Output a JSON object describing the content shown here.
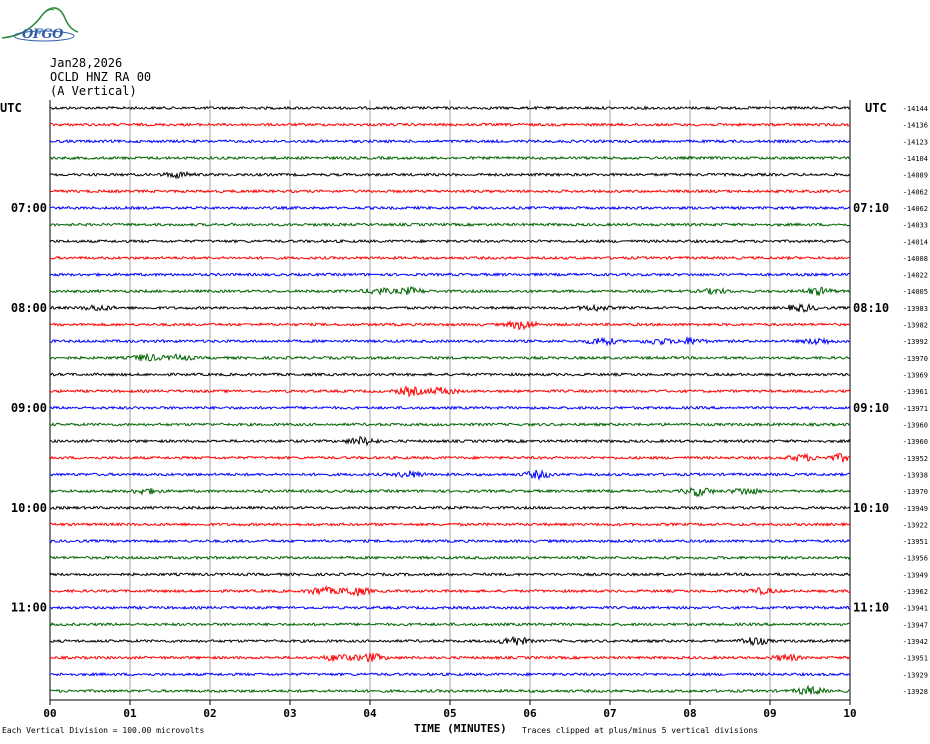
{
  "logo": {
    "text": "OFGO",
    "color": "#2f5fa8",
    "mountain_color": "#2e8b3d"
  },
  "header": {
    "date": "Jan28,2026",
    "station": "OCLD HNZ RA 00",
    "component": "(A Vertical)"
  },
  "chart_data": {
    "type": "line",
    "title": "",
    "xlabel": "TIME (MINUTES)",
    "ylabel": "",
    "xlim": [
      0,
      10
    ],
    "x_ticks": [
      "00",
      "01",
      "02",
      "03",
      "04",
      "05",
      "06",
      "07",
      "08",
      "09",
      "10"
    ],
    "left_axis_label": "UTC",
    "right_axis_label": "UTC",
    "left_time_labels": [
      {
        "row": 6,
        "label": "07:00"
      },
      {
        "row": 12,
        "label": "08:00"
      },
      {
        "row": 18,
        "label": "09:00"
      },
      {
        "row": 24,
        "label": "10:00"
      },
      {
        "row": 30,
        "label": "11:00"
      }
    ],
    "right_time_labels": [
      {
        "row": 6,
        "label": "07:10"
      },
      {
        "row": 12,
        "label": "08:10"
      },
      {
        "row": 18,
        "label": "09:10"
      },
      {
        "row": 24,
        "label": "10:10"
      },
      {
        "row": 30,
        "label": "11:10"
      }
    ],
    "trace_colors": [
      "#000000",
      "#ff0000",
      "#0000ff",
      "#006400"
    ],
    "trace_offsets": [
      -14144,
      -14136,
      -14123,
      -14104,
      -14089,
      -14062,
      -14062,
      -14033,
      -14014,
      -14008,
      -14022,
      -14005,
      -13983,
      -13982,
      -13992,
      -13970,
      -13969,
      -13961,
      -13971,
      -13960,
      -13960,
      -13952,
      -13938,
      -13970,
      -13949,
      -13922,
      -13951,
      -13956,
      -13949,
      -13962,
      -13941,
      -13947,
      -13942,
      -13951,
      -13929,
      -13928
    ],
    "events": [
      {
        "row": 4,
        "x": 1.6,
        "amp": 1.6
      },
      {
        "row": 11,
        "x": 4.1,
        "amp": 1.8
      },
      {
        "row": 11,
        "x": 4.5,
        "amp": 2.0
      },
      {
        "row": 11,
        "x": 8.3,
        "amp": 1.4
      },
      {
        "row": 11,
        "x": 9.6,
        "amp": 2.2
      },
      {
        "row": 12,
        "x": 0.6,
        "amp": 1.6
      },
      {
        "row": 12,
        "x": 6.8,
        "amp": 1.6
      },
      {
        "row": 12,
        "x": 9.4,
        "amp": 2.0
      },
      {
        "row": 13,
        "x": 5.9,
        "amp": 2.8
      },
      {
        "row": 14,
        "x": 6.9,
        "amp": 2.4
      },
      {
        "row": 14,
        "x": 7.6,
        "amp": 1.8
      },
      {
        "row": 14,
        "x": 8.0,
        "amp": 1.8
      },
      {
        "row": 14,
        "x": 9.6,
        "amp": 1.8
      },
      {
        "row": 15,
        "x": 1.2,
        "amp": 2.0
      },
      {
        "row": 15,
        "x": 1.6,
        "amp": 1.6
      },
      {
        "row": 17,
        "x": 4.5,
        "amp": 2.6
      },
      {
        "row": 17,
        "x": 4.9,
        "amp": 2.2
      },
      {
        "row": 20,
        "x": 3.9,
        "amp": 2.4
      },
      {
        "row": 21,
        "x": 9.4,
        "amp": 2.0
      },
      {
        "row": 21,
        "x": 9.9,
        "amp": 2.2
      },
      {
        "row": 22,
        "x": 4.5,
        "amp": 1.8
      },
      {
        "row": 22,
        "x": 6.1,
        "amp": 2.2
      },
      {
        "row": 23,
        "x": 1.2,
        "amp": 1.6
      },
      {
        "row": 23,
        "x": 8.1,
        "amp": 2.6
      },
      {
        "row": 23,
        "x": 8.7,
        "amp": 2.0
      },
      {
        "row": 29,
        "x": 3.4,
        "amp": 2.4
      },
      {
        "row": 29,
        "x": 3.8,
        "amp": 3.0
      },
      {
        "row": 29,
        "x": 8.9,
        "amp": 1.6
      },
      {
        "row": 32,
        "x": 5.8,
        "amp": 2.8
      },
      {
        "row": 32,
        "x": 8.8,
        "amp": 2.4
      },
      {
        "row": 33,
        "x": 3.6,
        "amp": 2.2
      },
      {
        "row": 33,
        "x": 4.0,
        "amp": 2.6
      },
      {
        "row": 33,
        "x": 9.2,
        "amp": 1.8
      },
      {
        "row": 35,
        "x": 9.5,
        "amp": 2.4
      }
    ],
    "grid": "vertical"
  },
  "footer": {
    "scale_note": "Each Vertical Division = 100.00 microvolts",
    "clip_note": "Traces clipped at plus/minus 5 vertical divisions"
  }
}
